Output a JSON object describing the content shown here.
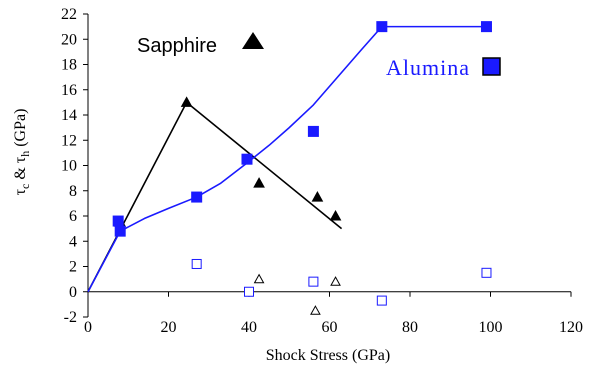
{
  "chart_data": {
    "type": "scatter",
    "xlabel": "Shock Stress (GPa)",
    "ylabel_parts": [
      "τ",
      "c",
      " & τ",
      "h",
      " (GPa)"
    ],
    "xlim": [
      0,
      120
    ],
    "ylim": [
      -2,
      22
    ],
    "xticks": [
      "0",
      "20",
      "40",
      "60",
      "80",
      "100",
      "120"
    ],
    "yticks": [
      "-2",
      "0",
      "2",
      "4",
      "6",
      "8",
      "10",
      "12",
      "14",
      "16",
      "18",
      "20",
      "22"
    ],
    "series": [
      {
        "name": "Sapphire",
        "color": "#000000",
        "marker": "triangle-filled",
        "points": [
          [
            8,
            5.5
          ],
          [
            24.5,
            15
          ],
          [
            42.5,
            8.6
          ],
          [
            57,
            7.5
          ],
          [
            61.5,
            6
          ]
        ]
      },
      {
        "name": "Alumina",
        "color": "#1a1aff",
        "marker": "square-filled",
        "points": [
          [
            7.5,
            5.6
          ],
          [
            8,
            4.8
          ],
          [
            27,
            7.5
          ],
          [
            39.5,
            10.5
          ],
          [
            56,
            12.7
          ],
          [
            73,
            21
          ],
          [
            99,
            21
          ]
        ]
      },
      {
        "name": "",
        "color": "#000000",
        "marker": "triangle-open",
        "points": [
          [
            42.5,
            1
          ],
          [
            56.5,
            -1.5
          ],
          [
            61.5,
            0.8
          ]
        ]
      },
      {
        "name": "",
        "color": "#1a1aff",
        "marker": "square-open",
        "points": [
          [
            27,
            2.2
          ],
          [
            40,
            0
          ],
          [
            56,
            0.8
          ],
          [
            73,
            -0.7
          ],
          [
            99,
            1.5
          ]
        ]
      }
    ],
    "fit_lines": [
      {
        "color": "#000000",
        "points": [
          [
            0,
            0
          ],
          [
            24.5,
            15
          ],
          [
            63,
            5
          ]
        ]
      },
      {
        "color": "#1a1aff",
        "points": [
          [
            0,
            0
          ],
          [
            8,
            4.8
          ],
          [
            14,
            5.8
          ],
          [
            20,
            6.6
          ],
          [
            27,
            7.5
          ],
          [
            33,
            8.6
          ],
          [
            39.5,
            10.2
          ],
          [
            45,
            11.6
          ],
          [
            50,
            13
          ],
          [
            56,
            14.8
          ],
          [
            62,
            17
          ],
          [
            68,
            19.2
          ],
          [
            73,
            21
          ],
          [
            99,
            21
          ]
        ]
      }
    ],
    "legend": {
      "sapphire_label": "Sapphire",
      "alumina_label": "Alumina"
    },
    "grid": false
  }
}
